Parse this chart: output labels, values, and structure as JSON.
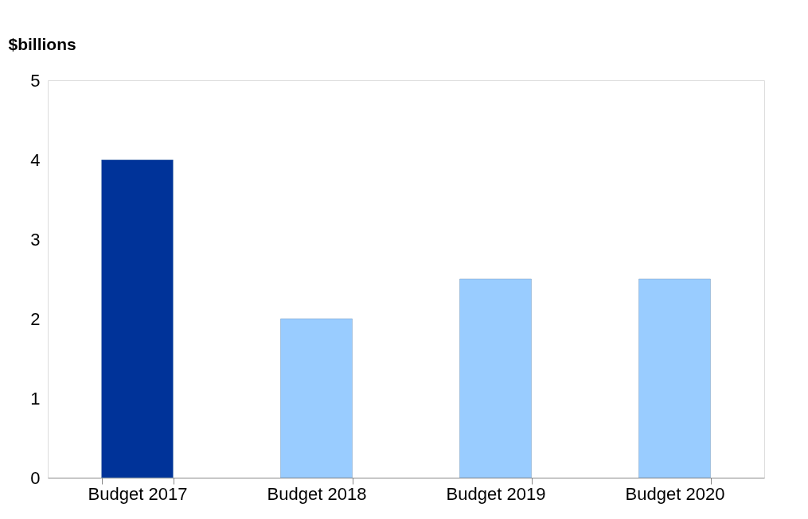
{
  "chart_data": {
    "type": "bar",
    "ylabel": "$billions",
    "categories": [
      "Budget 2017",
      "Budget 2018",
      "Budget 2019",
      "Budget 2020"
    ],
    "values": [
      4,
      2,
      2.5,
      2.5
    ],
    "colors": [
      "#003399",
      "#99ccff",
      "#99ccff",
      "#99ccff"
    ],
    "ylim": [
      0,
      5
    ],
    "yticks": [
      0,
      1,
      2,
      3,
      4,
      5
    ],
    "grid": false
  }
}
